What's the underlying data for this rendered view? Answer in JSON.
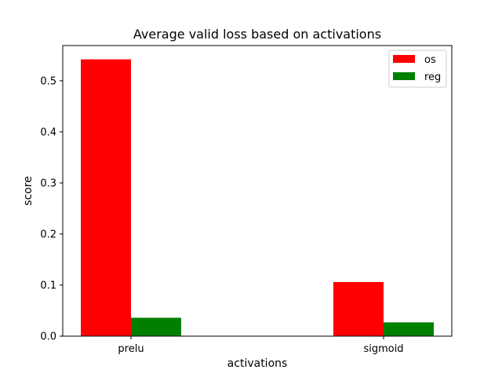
{
  "chart_data": {
    "type": "bar",
    "title": "Average valid loss based on activations",
    "xlabel": "activations",
    "ylabel": "score",
    "categories": [
      "prelu",
      "sigmoid"
    ],
    "series": [
      {
        "name": "os",
        "color": "#ff0000",
        "values": [
          0.542,
          0.106
        ]
      },
      {
        "name": "reg",
        "color": "#008000",
        "values": [
          0.036,
          0.027
        ]
      }
    ],
    "ylim": [
      0,
      0.569
    ],
    "yticks": [
      0.0,
      0.1,
      0.2,
      0.3,
      0.4,
      0.5
    ],
    "ytick_labels": [
      "0.0",
      "0.1",
      "0.2",
      "0.3",
      "0.4",
      "0.5"
    ],
    "grid": false,
    "legend_position": "top-right"
  }
}
